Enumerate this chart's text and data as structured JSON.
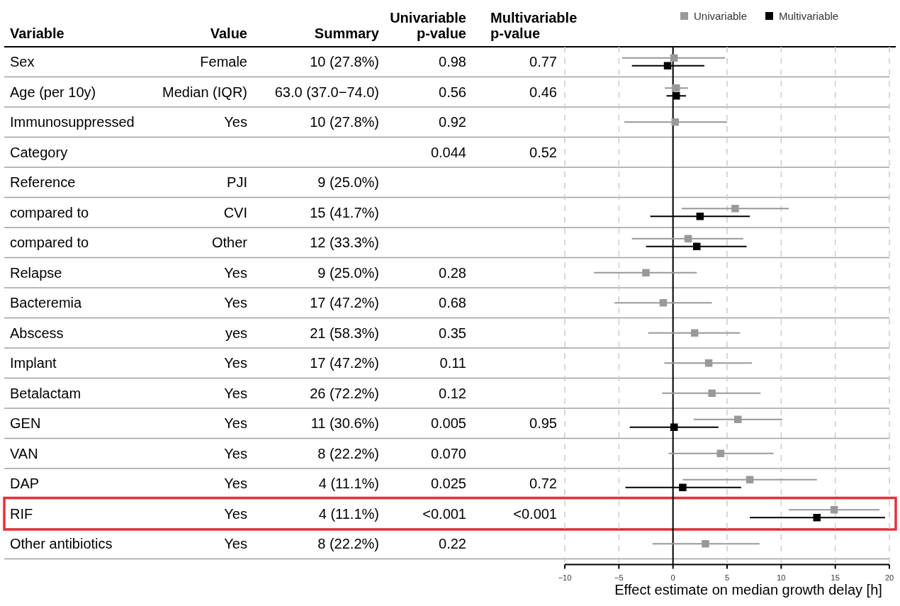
{
  "chart_data": [
    {
      "type": "heatmap",
      "ylabel": "Variable",
      "categories": [
        "Value",
        "Summary",
        "Univariable p-value",
        "Multivariable p-value"
      ],
      "y_categories": [
        "Sex",
        "Age (per 10y)",
        "Immunosuppressed",
        "Category",
        "Reference",
        "compared to",
        "compared to",
        "Relapse",
        "Bacteremia",
        "Abscess",
        "Implant",
        "Betalactam",
        "GEN",
        "VAN",
        "DAP",
        "RIF",
        "Other antibiotics"
      ],
      "cells": [
        [
          null,
          null,
          null,
          null
        ],
        [
          null,
          null,
          null,
          null
        ],
        [
          null,
          null,
          null,
          null
        ],
        [
          null,
          null,
          null,
          null
        ],
        [
          null,
          null,
          null,
          null
        ],
        [
          null,
          null,
          null,
          null
        ],
        [
          null,
          null,
          null,
          null
        ],
        [
          null,
          null,
          null,
          null
        ],
        [
          null,
          null,
          null,
          null
        ],
        [
          null,
          null,
          null,
          null
        ],
        [
          null,
          null,
          null,
          null
        ],
        [
          null,
          null,
          null,
          null
        ],
        [
          null,
          null,
          null,
          null
        ],
        [
          null,
          null,
          null,
          null
        ],
        [
          null,
          null,
          null,
          null
        ],
        [
          null,
          null,
          null,
          null
        ],
        [
          null,
          null,
          null,
          null
        ]
      ],
      "cell_labels": [
        [
          "Female",
          "10 (27.8%)",
          "0.98",
          "0.77"
        ],
        [
          "Median (IQR)",
          "63.0 (37.0−74.0)",
          "0.56",
          "0.46"
        ],
        [
          "Yes",
          "10 (27.8%)",
          "0.92",
          null
        ],
        [
          null,
          null,
          "0.044",
          "0.52"
        ],
        [
          "PJI",
          "9 (25.0%)",
          null,
          null
        ],
        [
          "CVI",
          "15 (41.7%)",
          null,
          null
        ],
        [
          "Other",
          "12 (33.3%)",
          null,
          null
        ],
        [
          "Yes",
          "9 (25.0%)",
          "0.28",
          null
        ],
        [
          "Yes",
          "17 (47.2%)",
          "0.68",
          null
        ],
        [
          "yes",
          "21 (58.3%)",
          "0.35",
          null
        ],
        [
          "Yes",
          "17 (47.2%)",
          "0.11",
          null
        ],
        [
          "Yes",
          "26 (72.2%)",
          "0.12",
          null
        ],
        [
          "Yes",
          "11 (30.6%)",
          "0.005",
          "0.95"
        ],
        [
          "Yes",
          "8 (22.2%)",
          "0.070",
          null
        ],
        [
          "Yes",
          "4 (11.1%)",
          "0.025",
          "0.72"
        ],
        [
          "Yes",
          "4 (11.1%)",
          "<0.001",
          "<0.001"
        ],
        [
          "Yes",
          "8 (22.2%)",
          "0.22",
          null
        ]
      ]
    },
    {
      "type": "scatter",
      "orientation": "horizontal",
      "xlabel": "Effect estimate on median growth delay [h]",
      "categories": [
        null,
        null,
        null,
        null,
        null,
        null,
        null,
        null,
        null,
        null,
        null,
        null,
        null,
        null,
        null,
        null,
        null
      ],
      "xlim": [
        -10,
        20
      ],
      "xticks": [
        -10,
        -5,
        0,
        5,
        10,
        15,
        20
      ],
      "grid": "x",
      "tick_labels": "x",
      "legend": "top",
      "marker": "square",
      "ref_lines": [
        {
          "axis": "x",
          "value": 0,
          "color": "#000000"
        }
      ],
      "series": [
        {
          "name": "Univariable",
          "color": "#999999",
          "values": [
            0.1,
            0.3,
            0.2,
            null,
            null,
            5.75,
            1.4,
            -2.5,
            -0.9,
            2.0,
            3.3,
            3.6,
            6.0,
            4.4,
            7.1,
            14.9,
            3.0
          ],
          "errors": [
            [
              -4.7,
              4.8
            ],
            [
              -0.75,
              1.4
            ],
            [
              -4.5,
              5.0
            ],
            null,
            null,
            [
              0.8,
              10.7
            ],
            [
              -3.8,
              6.5
            ],
            [
              -7.3,
              2.2
            ],
            [
              -5.4,
              3.6
            ],
            [
              -2.3,
              6.2
            ],
            [
              -0.8,
              7.3
            ],
            [
              -1.0,
              8.1
            ],
            [
              1.9,
              10.1
            ],
            [
              -0.4,
              9.3
            ],
            [
              0.9,
              13.3
            ],
            [
              10.7,
              19.1
            ],
            [
              -1.9,
              8.0
            ]
          ]
        },
        {
          "name": "Multivariable",
          "color": "#000000",
          "values": [
            -0.5,
            0.3,
            null,
            null,
            null,
            2.5,
            2.2,
            null,
            null,
            null,
            null,
            null,
            0.1,
            null,
            0.9,
            13.3,
            null
          ],
          "errors": [
            [
              -3.8,
              2.9
            ],
            [
              -0.6,
              1.2
            ],
            null,
            null,
            null,
            [
              -2.1,
              7.1
            ],
            [
              -2.5,
              6.8
            ],
            null,
            null,
            null,
            null,
            null,
            [
              -4.0,
              4.2
            ],
            null,
            [
              -4.4,
              6.3
            ],
            [
              7.1,
              19.6
            ],
            null
          ]
        }
      ]
    }
  ]
}
